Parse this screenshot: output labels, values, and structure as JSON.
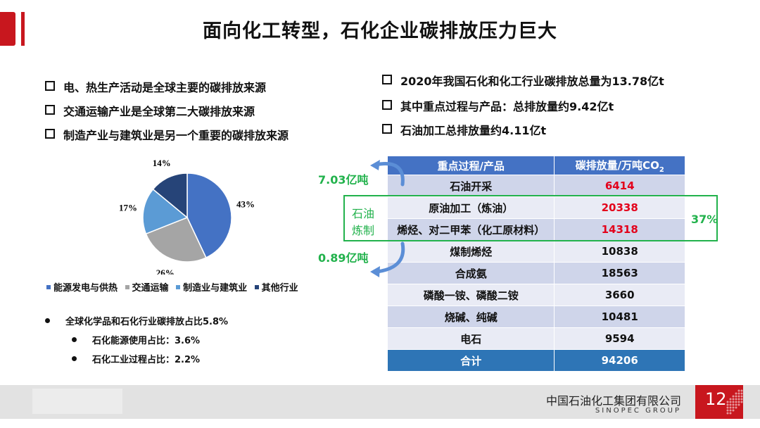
{
  "header": {
    "title": "面向化工转型，石化企业碳排放压力巨大",
    "accent_color": "#c8171e"
  },
  "left_bullets": [
    "电、热生产活动是全球主要的碳排放来源",
    "交通运输产业是全球第二大碳排放来源",
    "制造产业与建筑业是另一个重要的碳排放来源"
  ],
  "right_bullets": [
    "2020年我国石化和化工行业碳排放总量为13.78亿t",
    "其中重点过程与产品：总排放量约9.42亿t",
    "石油加工总排放量约4.11亿t"
  ],
  "chart_data": {
    "type": "pie",
    "labels": [
      "能源发电与供热",
      "交通运输",
      "制造业与建筑业",
      "其他行业"
    ],
    "values": [
      43,
      26,
      17,
      14
    ],
    "value_labels": [
      "43%",
      "26%",
      "17%",
      "14%"
    ],
    "colors": [
      "#4472c4",
      "#a5a5a5",
      "#5b9bd5",
      "#264478"
    ],
    "legend_position": "bottom"
  },
  "notes": {
    "main": "全球化学品和石化行业碳排放占比5.8%",
    "sub": [
      "石化能源使用占比：3.6%",
      "石化工业过程占比：2.2%"
    ]
  },
  "table": {
    "header": [
      "重点过程/产品",
      "碳排放量/万吨CO"
    ],
    "header_sub": "2",
    "rows": [
      {
        "name": "石油开采",
        "value": "6414",
        "highlight": true
      },
      {
        "name": "原油加工（炼油）",
        "value": "20338",
        "highlight": true
      },
      {
        "name": "烯烃、对二甲苯（化工原材料）",
        "value": "14318",
        "highlight": true
      },
      {
        "name": "煤制烯烃",
        "value": "10838",
        "highlight": false
      },
      {
        "name": "合成氨",
        "value": "18563",
        "highlight": false
      },
      {
        "name": "磷酸一铵、磷酸二铵",
        "value": "3660",
        "highlight": false
      },
      {
        "name": "烧碱、纯碱",
        "value": "10481",
        "highlight": false
      },
      {
        "name": "电石",
        "value": "9594",
        "highlight": false
      }
    ],
    "total": {
      "name": "合计",
      "value": "94206"
    }
  },
  "annotations": {
    "top_value": "7.03亿吨",
    "bottom_value": "0.89亿吨",
    "refining_label_1": "石油",
    "refining_label_2": "炼制",
    "share": "37%",
    "highlight_color": "#22b24c"
  },
  "footer": {
    "company_cn": "中国石油化工集团有限公司",
    "company_en": "SINOPEC GROUP",
    "page": "12"
  }
}
